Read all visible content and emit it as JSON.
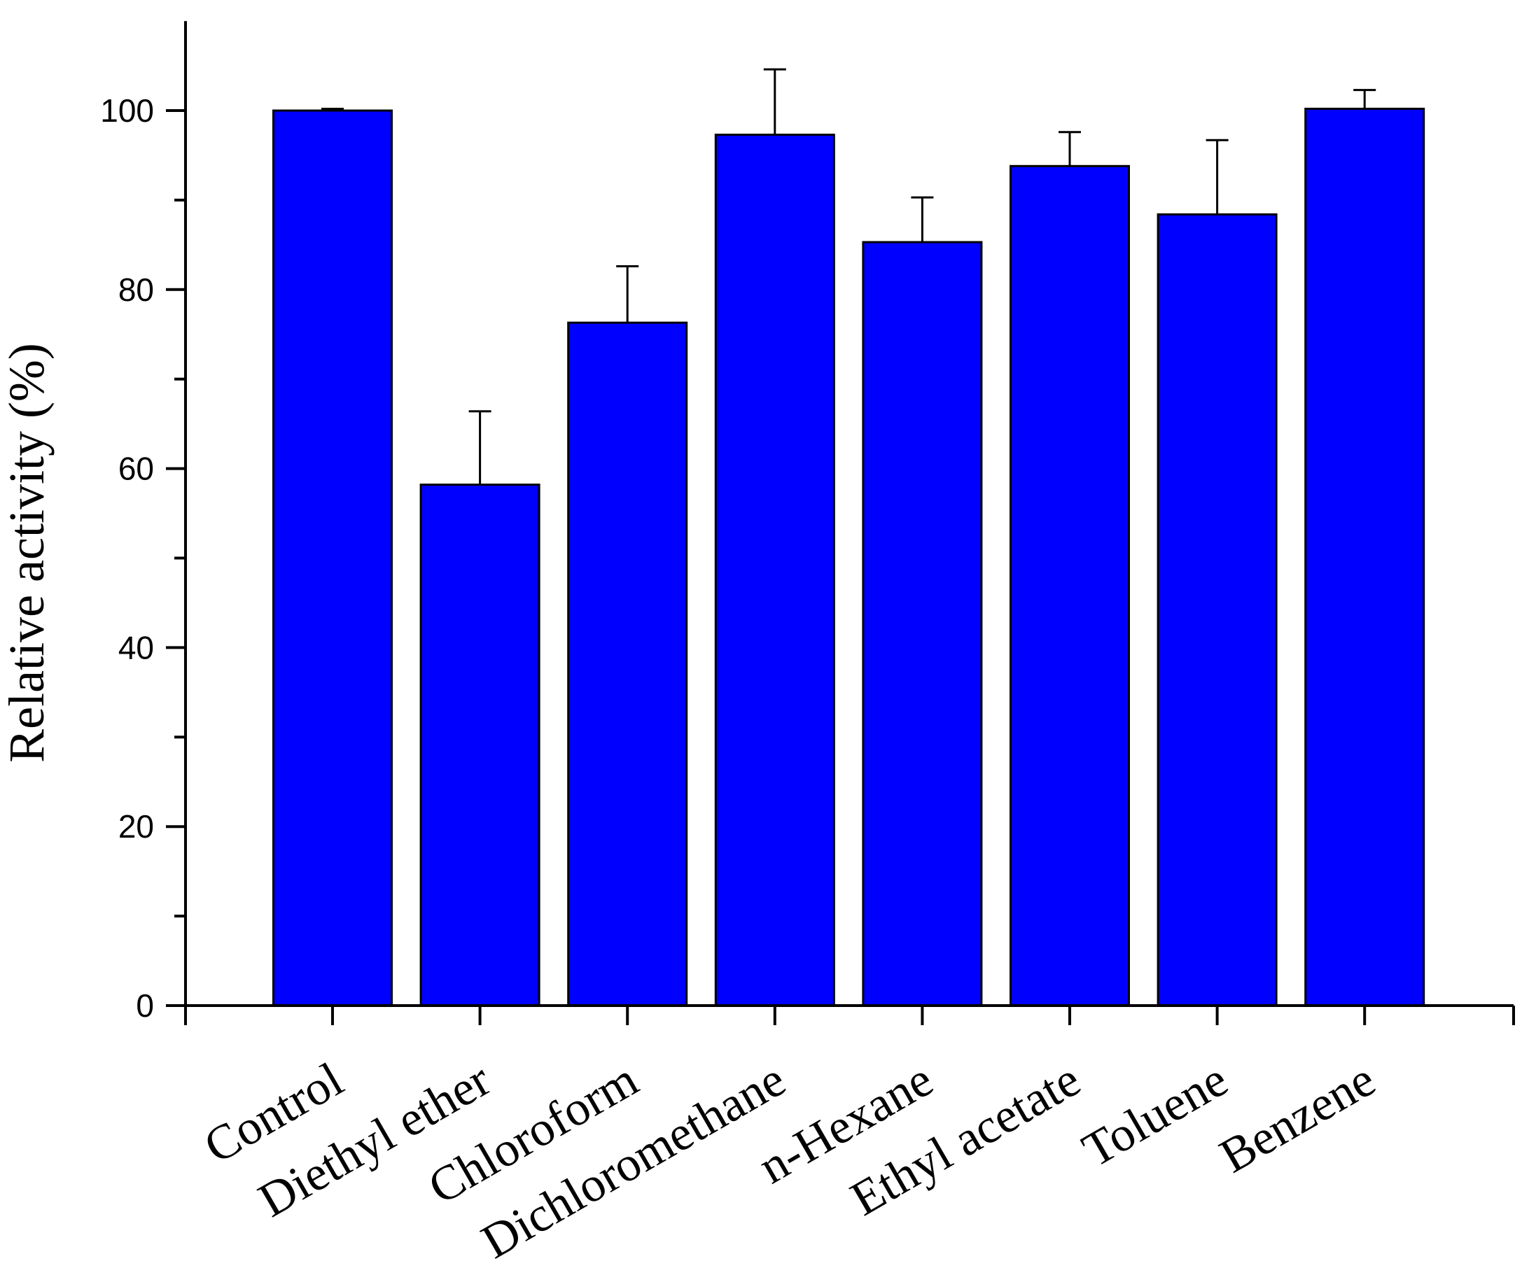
{
  "chart_data": {
    "type": "bar",
    "categories": [
      "Control",
      "Diethyl ether",
      "Chloroform",
      "Dichloromethane",
      "n-Hexane",
      "Ethyl acetate",
      "Toluene",
      "Benzene"
    ],
    "values": [
      100,
      58.2,
      76.3,
      97.3,
      85.3,
      93.8,
      88.4,
      100.2
    ],
    "errors": [
      0.2,
      8.2,
      6.3,
      7.3,
      5.0,
      3.8,
      8.3,
      2.1
    ],
    "ylabel": "Relative activity (%)",
    "xlabel": "",
    "ylim": [
      0,
      110
    ],
    "yticks_major": [
      0,
      20,
      40,
      60,
      80,
      100
    ],
    "ytick_labels": [
      "0",
      "20",
      "40",
      "60",
      "80",
      "100"
    ],
    "yticks_minor": [
      10,
      30,
      50,
      70,
      90
    ],
    "bar_color": "#0000ff",
    "grid": false,
    "legend": "none"
  }
}
